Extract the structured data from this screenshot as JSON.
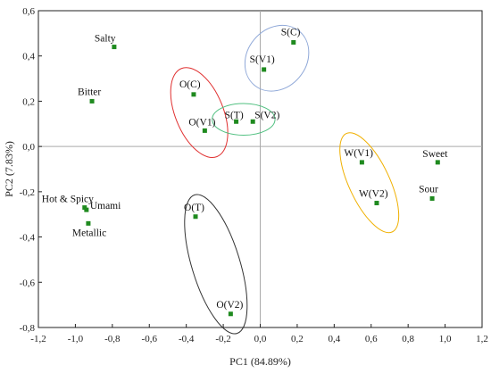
{
  "chart_data": {
    "type": "scatter",
    "xlabel": "PC1 (84.89%)",
    "ylabel": "PC2 (7.83%)",
    "xlim": [
      -1.2,
      1.2
    ],
    "ylim": [
      -0.8,
      0.6
    ],
    "x_ticks": [
      "-1,2",
      "-1,0",
      "-0,8",
      "-0,6",
      "-0,4",
      "-0,2",
      "0,0",
      "0,2",
      "0,4",
      "0,6",
      "0,8",
      "1,0",
      "1,2"
    ],
    "y_ticks": [
      "0,6",
      "0,4",
      "0,2",
      "0,0",
      "-0,2",
      "-0,4",
      "-0,6",
      "-0,8"
    ],
    "grid": false,
    "reference_lines": {
      "x": 0,
      "y": 0
    },
    "marker_color": "#1f8a1f",
    "points": [
      {
        "label": "Salty",
        "x": -0.79,
        "y": 0.44
      },
      {
        "label": "Bitter",
        "x": -0.91,
        "y": 0.2
      },
      {
        "label": "Hot & Spicy",
        "x": -0.95,
        "y": -0.27
      },
      {
        "label": "Umami",
        "x": -0.94,
        "y": -0.28
      },
      {
        "label": "Metallic",
        "x": -0.93,
        "y": -0.34
      },
      {
        "label": "O(C)",
        "x": -0.36,
        "y": 0.23
      },
      {
        "label": "O(V1)",
        "x": -0.3,
        "y": 0.07
      },
      {
        "label": "S(C)",
        "x": 0.18,
        "y": 0.46
      },
      {
        "label": "S(V1)",
        "x": 0.02,
        "y": 0.34
      },
      {
        "label": "S(T)",
        "x": -0.13,
        "y": 0.11
      },
      {
        "label": "S(V2)",
        "x": -0.04,
        "y": 0.11
      },
      {
        "label": "W(V1)",
        "x": 0.55,
        "y": -0.07
      },
      {
        "label": "W(V2)",
        "x": 0.63,
        "y": -0.25
      },
      {
        "label": "Sweet",
        "x": 0.96,
        "y": -0.07
      },
      {
        "label": "Sour",
        "x": 0.93,
        "y": -0.23
      },
      {
        "label": "O(T)",
        "x": -0.35,
        "y": -0.31
      },
      {
        "label": "O(V2)",
        "x": -0.16,
        "y": -0.74
      }
    ],
    "groups": [
      {
        "color": "#e03030",
        "cx": -0.33,
        "cy": 0.15,
        "rx": 0.13,
        "ry": 0.21,
        "rotate": -22
      },
      {
        "color": "#8fa8d8",
        "cx": 0.09,
        "cy": 0.39,
        "rx": 0.19,
        "ry": 0.13,
        "rotate": -50
      },
      {
        "color": "#50c080",
        "cx": -0.09,
        "cy": 0.12,
        "rx": 0.17,
        "ry": 0.07,
        "rotate": 0
      },
      {
        "color": "#f0b000",
        "cx": 0.59,
        "cy": -0.16,
        "rx": 0.11,
        "ry": 0.24,
        "rotate": -25
      },
      {
        "color": "#333333",
        "cx": -0.24,
        "cy": -0.52,
        "rx": 0.13,
        "ry": 0.32,
        "rotate": -17
      }
    ]
  }
}
